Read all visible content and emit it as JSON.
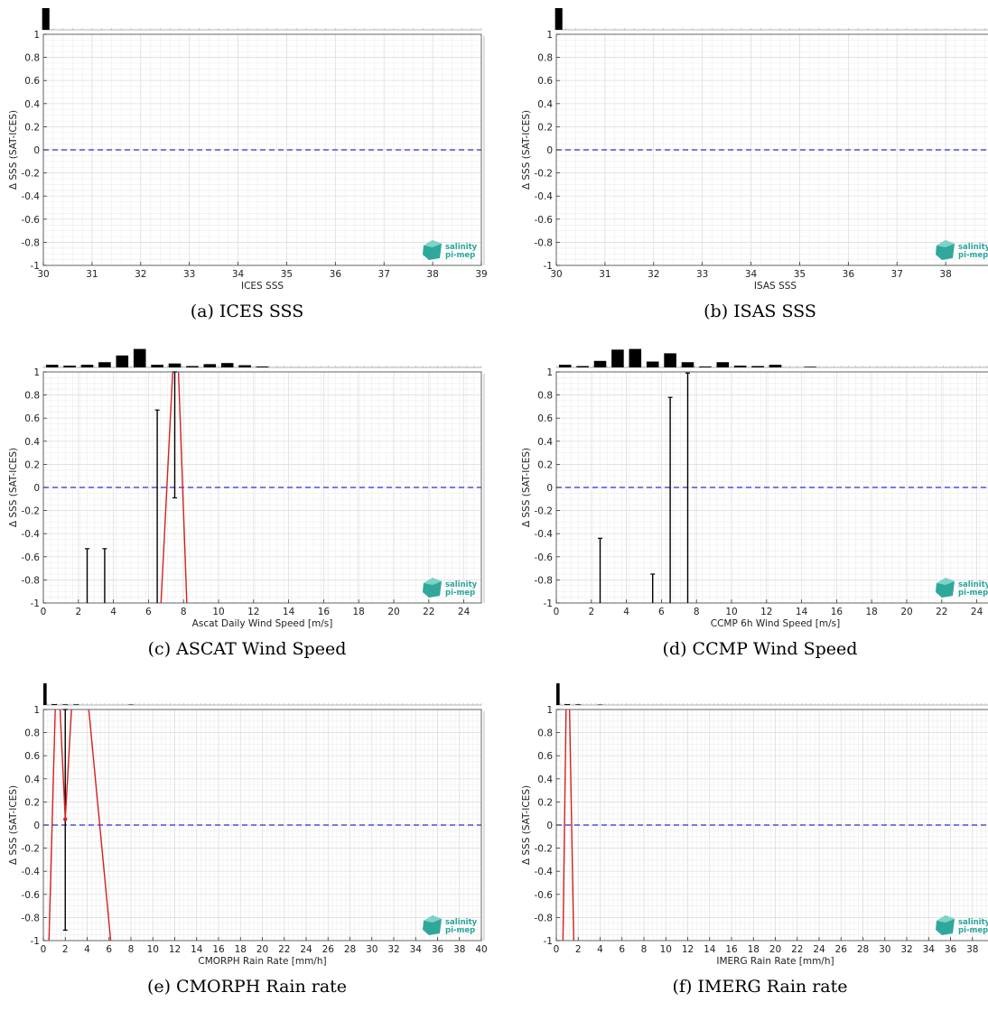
{
  "chart_data": [
    {
      "id": "a",
      "type": "bar+errorbar",
      "caption": "(a) ICES SSS",
      "xlabel": "ICES SSS",
      "ylabel": "Δ SSS (SAT-ICES)",
      "xlim": [
        30,
        39
      ],
      "ylim": [
        -1,
        1
      ],
      "xticks": [
        30,
        31,
        32,
        33,
        34,
        35,
        36,
        37,
        38,
        39
      ],
      "yticks": [
        -1,
        -0.8,
        -0.6,
        -0.4,
        -0.2,
        0,
        0.2,
        0.4,
        0.6,
        0.8,
        1
      ],
      "hist_bins": [
        {
          "x": 30.05,
          "w": 0.15,
          "h": 1.0
        }
      ],
      "errorbars": [],
      "mean_line": [],
      "zero_line": 0,
      "grid": true,
      "logo": {
        "line1": "salinity",
        "line2": "pi-mep"
      }
    },
    {
      "id": "b",
      "type": "bar+errorbar",
      "caption": "(b) ISAS SSS",
      "xlabel": "ISAS SSS",
      "ylabel": "Δ SSS (SAT-ICES)",
      "xlim": [
        30,
        39
      ],
      "ylim": [
        -1,
        1
      ],
      "xticks": [
        30,
        31,
        32,
        33,
        34,
        35,
        36,
        37,
        38,
        39
      ],
      "xticklabels": [
        "30",
        "31",
        "32",
        "33",
        "34",
        "35",
        "36",
        "37",
        "38",
        "39"
      ],
      "yticks": [
        -1,
        -0.8,
        -0.6,
        -0.4,
        -0.2,
        0,
        0.2,
        0.4,
        0.6,
        0.8,
        1
      ],
      "hist_bins": [
        {
          "x": 30.05,
          "w": 0.15,
          "h": 1.0
        }
      ],
      "errorbars": [],
      "mean_line": [],
      "zero_line": 0,
      "grid": true,
      "logo": {
        "line1": "salinity",
        "line2": "pi-mep"
      }
    },
    {
      "id": "c",
      "type": "bar+errorbar",
      "caption": "(c) ASCAT Wind Speed",
      "xlabel": "Ascat Daily Wind Speed [m/s]",
      "ylabel": "Δ SSS (SAT-ICES)",
      "xlim": [
        0,
        25
      ],
      "ylim": [
        -1,
        1
      ],
      "xticks": [
        0,
        2,
        4,
        6,
        8,
        10,
        12,
        14,
        16,
        18,
        20,
        22,
        24
      ],
      "yticks": [
        -1,
        -0.8,
        -0.6,
        -0.4,
        -0.2,
        0,
        0.2,
        0.4,
        0.6,
        0.8,
        1
      ],
      "hist_bins": [
        {
          "x": 0.5,
          "w": 0.7,
          "h": 0.12
        },
        {
          "x": 1.5,
          "w": 0.7,
          "h": 0.08
        },
        {
          "x": 2.5,
          "w": 0.7,
          "h": 0.12
        },
        {
          "x": 3.5,
          "w": 0.7,
          "h": 0.24
        },
        {
          "x": 4.5,
          "w": 0.7,
          "h": 0.55
        },
        {
          "x": 5.5,
          "w": 0.7,
          "h": 0.85
        },
        {
          "x": 6.5,
          "w": 0.7,
          "h": 0.12
        },
        {
          "x": 7.5,
          "w": 0.7,
          "h": 0.18
        },
        {
          "x": 8.5,
          "w": 0.7,
          "h": 0.06
        },
        {
          "x": 9.5,
          "w": 0.7,
          "h": 0.15
        },
        {
          "x": 10.5,
          "w": 0.7,
          "h": 0.2
        },
        {
          "x": 11.5,
          "w": 0.7,
          "h": 0.1
        },
        {
          "x": 12.5,
          "w": 0.7,
          "h": 0.04
        }
      ],
      "errorbars": [
        {
          "x": 2.5,
          "low": -1.0,
          "high": -0.53
        },
        {
          "x": 3.5,
          "low": -1.0,
          "high": -0.53
        },
        {
          "x": 6.5,
          "low": -1.0,
          "high": 0.67
        },
        {
          "x": 7.5,
          "low": -0.09,
          "high": 1.0
        }
      ],
      "mean_line": [
        [
          6.7,
          -1.05
        ],
        [
          7.4,
          1.05
        ],
        [
          7.7,
          1.05
        ],
        [
          8.2,
          -1.05
        ]
      ],
      "zero_line": 0,
      "grid": true,
      "logo": {
        "line1": "salinity",
        "line2": "pi-mep"
      }
    },
    {
      "id": "d",
      "type": "bar+errorbar",
      "caption": "(d) CCMP Wind Speed",
      "xlabel": "CCMP 6h Wind Speed [m/s]",
      "ylabel": "Δ SSS (SAT-ICES)",
      "xlim": [
        0,
        25
      ],
      "ylim": [
        -1,
        1
      ],
      "xticks": [
        0,
        2,
        4,
        6,
        8,
        10,
        12,
        14,
        16,
        18,
        20,
        22,
        24
      ],
      "yticks": [
        -1,
        -0.8,
        -0.6,
        -0.4,
        -0.2,
        0,
        0.2,
        0.4,
        0.6,
        0.8,
        1
      ],
      "hist_bins": [
        {
          "x": 0.5,
          "w": 0.7,
          "h": 0.12
        },
        {
          "x": 1.5,
          "w": 0.7,
          "h": 0.06
        },
        {
          "x": 2.5,
          "w": 0.7,
          "h": 0.3
        },
        {
          "x": 3.5,
          "w": 0.7,
          "h": 0.82
        },
        {
          "x": 4.5,
          "w": 0.7,
          "h": 0.85
        },
        {
          "x": 5.5,
          "w": 0.7,
          "h": 0.27
        },
        {
          "x": 6.5,
          "w": 0.7,
          "h": 0.65
        },
        {
          "x": 7.5,
          "w": 0.7,
          "h": 0.24
        },
        {
          "x": 8.5,
          "w": 0.7,
          "h": 0.04
        },
        {
          "x": 9.5,
          "w": 0.7,
          "h": 0.24
        },
        {
          "x": 10.5,
          "w": 0.7,
          "h": 0.08
        },
        {
          "x": 11.5,
          "w": 0.7,
          "h": 0.06
        },
        {
          "x": 12.5,
          "w": 0.7,
          "h": 0.12
        },
        {
          "x": 14.5,
          "w": 0.7,
          "h": 0.03
        }
      ],
      "errorbars": [
        {
          "x": 2.5,
          "low": -1.0,
          "high": -0.44
        },
        {
          "x": 5.5,
          "low": -1.0,
          "high": -0.75
        },
        {
          "x": 6.5,
          "low": -1.0,
          "high": 0.78
        },
        {
          "x": 7.5,
          "low": -1.0,
          "high": 0.99
        }
      ],
      "mean_line": [],
      "zero_line": 0,
      "grid": true,
      "logo": {
        "line1": "salinity",
        "line2": "pi-mep"
      }
    },
    {
      "id": "e",
      "type": "bar+errorbar",
      "caption": "(e) CMORPH Rain rate",
      "xlabel": "CMORPH Rain Rate [mm/h]",
      "ylabel": "Δ SSS (SAT-ICES)",
      "xlim": [
        0,
        40
      ],
      "ylim": [
        -1,
        1
      ],
      "xticks": [
        0,
        2,
        4,
        6,
        8,
        10,
        12,
        14,
        16,
        18,
        20,
        22,
        24,
        26,
        28,
        30,
        32,
        34,
        36,
        38,
        40
      ],
      "yticks": [
        -1,
        -0.8,
        -0.6,
        -0.4,
        -0.2,
        0,
        0.2,
        0.4,
        0.6,
        0.8,
        1
      ],
      "hist_bins": [
        {
          "x": 0.15,
          "w": 0.3,
          "h": 1.0
        },
        {
          "x": 1.0,
          "w": 0.5,
          "h": 0.04
        },
        {
          "x": 2.0,
          "w": 0.5,
          "h": 0.03
        },
        {
          "x": 3.0,
          "w": 0.5,
          "h": 0.03
        },
        {
          "x": 8.0,
          "w": 0.5,
          "h": 0.02
        }
      ],
      "errorbars": [
        {
          "x": 2.0,
          "low": -0.91,
          "high": 1.0
        }
      ],
      "mean_line": [
        [
          0.5,
          -1.05
        ],
        [
          1.1,
          1.05
        ],
        [
          1.5,
          1.05
        ],
        [
          2.0,
          0.05
        ],
        [
          2.6,
          1.05
        ],
        [
          4.1,
          1.05
        ],
        [
          6.2,
          -1.05
        ]
      ],
      "mean_point": {
        "x": 2.0,
        "y": 0.05
      },
      "zero_line": 0,
      "grid": true,
      "logo": {
        "line1": "salinity",
        "line2": "pi-mep"
      }
    },
    {
      "id": "f",
      "type": "bar+errorbar",
      "caption": "(f) IMERG Rain rate",
      "xlabel": "IMERG Rain Rate [mm/h]",
      "ylabel": "Δ SSS (SAT-ICES)",
      "xlim": [
        0,
        40
      ],
      "ylim": [
        -1,
        1
      ],
      "xticks": [
        0,
        2,
        4,
        6,
        8,
        10,
        12,
        14,
        16,
        18,
        20,
        22,
        24,
        26,
        28,
        30,
        32,
        34,
        36,
        38,
        40
      ],
      "yticks": [
        -1,
        -0.8,
        -0.6,
        -0.4,
        -0.2,
        0,
        0.2,
        0.4,
        0.6,
        0.8,
        1
      ],
      "hist_bins": [
        {
          "x": 0.15,
          "w": 0.3,
          "h": 1.0
        },
        {
          "x": 1.0,
          "w": 0.5,
          "h": 0.04
        },
        {
          "x": 2.0,
          "w": 0.5,
          "h": 0.03
        },
        {
          "x": 4.0,
          "w": 0.5,
          "h": 0.02
        }
      ],
      "errorbars": [],
      "mean_line": [
        [
          0.6,
          -1.05
        ],
        [
          0.9,
          1.05
        ],
        [
          1.2,
          1.05
        ],
        [
          1.6,
          -1.05
        ]
      ],
      "zero_line": 0,
      "grid": true,
      "logo": {
        "line1": "salinity",
        "line2": "pi-mep"
      }
    }
  ]
}
